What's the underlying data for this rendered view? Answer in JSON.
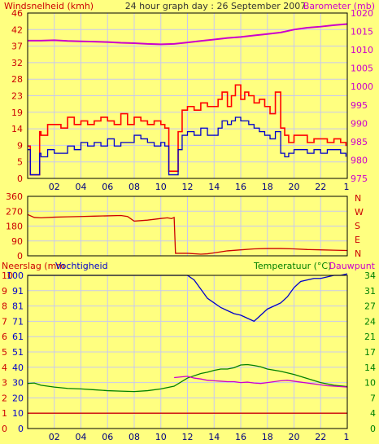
{
  "header": {
    "left": "Windsnelheid (kmh)",
    "center": "24 hour graph day : 26 September 2007",
    "right": "Barometer (mb)"
  },
  "colors": {
    "background": "#ffff80",
    "frame": "#000000",
    "grid": "#c8c8f0",
    "gust": "#ff0000",
    "wind": "#0000cc",
    "barometer": "#cc00cc",
    "direction": "#cc0000",
    "humidity": "#0000cc",
    "temperature": "#008000",
    "dewpoint": "#cc00cc",
    "rain": "#cc0000"
  },
  "chart_data": [
    {
      "type": "line",
      "x_ticks": [
        "02",
        "04",
        "06",
        "08",
        "10",
        "12",
        "14",
        "16",
        "18",
        "20",
        "22",
        "1"
      ],
      "x_range_hours": [
        0,
        24
      ],
      "left_axis": {
        "label": "Windsnelheid (kmh)",
        "ticks": [
          0,
          5,
          9,
          14,
          19,
          23,
          28,
          32,
          37,
          42,
          46
        ],
        "range": [
          0,
          46
        ]
      },
      "right_axis": {
        "label": "Barometer (mb)",
        "ticks": [
          975,
          980,
          985,
          990,
          995,
          1000,
          1005,
          1010,
          1015,
          1020
        ],
        "range": [
          975,
          1020
        ]
      },
      "series": [
        {
          "name": "gust",
          "axis": "left",
          "x": [
            0,
            0.2,
            0.5,
            0.9,
            1.0,
            1.5,
            2,
            2.5,
            3,
            3.5,
            4,
            4.5,
            5,
            5.5,
            6,
            6.5,
            7,
            7.5,
            8,
            8.5,
            9,
            9.5,
            10,
            10.3,
            10.6,
            11,
            11.3,
            11.6,
            12,
            12.5,
            13,
            13.5,
            14,
            14.3,
            14.6,
            15,
            15.3,
            15.6,
            16,
            16.3,
            16.6,
            17,
            17.4,
            17.8,
            18.2,
            18.6,
            19,
            19.3,
            19.6,
            20,
            20.5,
            21,
            21.5,
            22,
            22.5,
            23,
            23.5,
            23.9
          ],
          "values": [
            9,
            1,
            1,
            13,
            12,
            15,
            15,
            14,
            17,
            15,
            16,
            15,
            16,
            17,
            16,
            15,
            18,
            15,
            17,
            16,
            15,
            16,
            15,
            14,
            2,
            2,
            13,
            19,
            20,
            19,
            21,
            20,
            20,
            22,
            24,
            20,
            23,
            26,
            22,
            24,
            23,
            21,
            22,
            20,
            18,
            24,
            14,
            12,
            10,
            12,
            12,
            10,
            11,
            11,
            10,
            11,
            10,
            9
          ]
        },
        {
          "name": "wind",
          "axis": "left",
          "x": [
            0,
            0.2,
            0.5,
            0.9,
            1.0,
            1.5,
            2,
            2.5,
            3,
            3.5,
            4,
            4.5,
            5,
            5.5,
            6,
            6.5,
            7,
            7.5,
            8,
            8.5,
            9,
            9.5,
            10,
            10.3,
            10.6,
            11,
            11.3,
            11.6,
            12,
            12.5,
            13,
            13.5,
            14,
            14.3,
            14.6,
            15,
            15.3,
            15.6,
            16,
            16.3,
            16.6,
            17,
            17.4,
            17.8,
            18.2,
            18.6,
            19,
            19.3,
            19.6,
            20,
            20.5,
            21,
            21.5,
            22,
            22.5,
            23,
            23.5,
            23.9
          ],
          "values": [
            8,
            1,
            1,
            7,
            6,
            8,
            7,
            7,
            9,
            8,
            10,
            9,
            10,
            9,
            11,
            9,
            10,
            10,
            12,
            11,
            10,
            9,
            10,
            9,
            1,
            1,
            8,
            12,
            13,
            12,
            14,
            12,
            12,
            14,
            16,
            15,
            16,
            17,
            16,
            16,
            15,
            14,
            13,
            12,
            11,
            13,
            7,
            6,
            7,
            8,
            8,
            7,
            8,
            7,
            8,
            8,
            7,
            6
          ]
        },
        {
          "name": "barometer",
          "axis": "right",
          "x": [
            0,
            1,
            2,
            3,
            4,
            5,
            6,
            7,
            8,
            9,
            10,
            11,
            12,
            13,
            14,
            15,
            16,
            17,
            18,
            19,
            20,
            21,
            22,
            23,
            24
          ],
          "values": [
            1012.5,
            1012.5,
            1012.6,
            1012.4,
            1012.3,
            1012.2,
            1012.1,
            1011.9,
            1011.8,
            1011.6,
            1011.5,
            1011.6,
            1012.0,
            1012.4,
            1012.8,
            1013.2,
            1013.5,
            1013.9,
            1014.3,
            1014.7,
            1015.5,
            1016.0,
            1016.3,
            1016.7,
            1017.0
          ]
        }
      ]
    },
    {
      "type": "line",
      "x_range_hours": [
        0,
        24
      ],
      "left_axis": {
        "ticks": [
          0,
          90,
          180,
          270,
          360
        ],
        "range": [
          0,
          360
        ]
      },
      "right_axis": {
        "ticks": [
          "N",
          "W",
          "S",
          "E",
          "N"
        ]
      },
      "series": [
        {
          "name": "direction",
          "x": [
            0,
            0.5,
            1,
            2,
            3,
            4,
            5,
            6,
            7,
            7.5,
            8,
            9,
            10,
            10.5,
            10.8,
            11,
            11.1,
            12,
            13,
            13.5,
            14,
            15,
            16,
            17,
            18,
            19,
            20,
            21,
            22,
            23,
            24
          ],
          "values": [
            250,
            232,
            230,
            234,
            236,
            238,
            240,
            242,
            244,
            238,
            210,
            216,
            226,
            230,
            225,
            232,
            15,
            15,
            10,
            12,
            18,
            30,
            36,
            42,
            44,
            44,
            42,
            38,
            36,
            34,
            32
          ]
        }
      ]
    },
    {
      "type": "line",
      "x_ticks": [
        "02",
        "04",
        "06",
        "08",
        "10",
        "12",
        "14",
        "16",
        "18",
        "20",
        "22",
        "1"
      ],
      "x_range_hours": [
        0,
        24
      ],
      "header_left": [
        "Neerslag (mm",
        "Vochtigheid"
      ],
      "header_right": [
        "Temperatuur (°C)",
        "Dauwpunt"
      ],
      "left_axis_rain": {
        "ticks": [
          0,
          1,
          2,
          3,
          4,
          5,
          6,
          7,
          8,
          9,
          10
        ]
      },
      "left_axis_humidity": {
        "ticks": [
          0,
          10,
          20,
          30,
          40,
          51,
          61,
          71,
          81,
          91,
          100
        ],
        "range": [
          0,
          100
        ]
      },
      "right_axis_temperature": {
        "ticks": [
          0,
          4,
          7,
          10,
          14,
          17,
          21,
          24,
          27,
          31,
          34
        ],
        "range": [
          0,
          34
        ]
      },
      "series": [
        {
          "name": "humidity",
          "axis": "left",
          "x": [
            0,
            1,
            2,
            3,
            4,
            5,
            6,
            7,
            8,
            9,
            10,
            11,
            11.5,
            12,
            12.5,
            13,
            13.5,
            14,
            14.5,
            15,
            15.5,
            16,
            16.5,
            17,
            17.5,
            18,
            18.5,
            19,
            19.5,
            20,
            20.5,
            21,
            21.5,
            22,
            22.5,
            23,
            23.5,
            24
          ],
          "values": [
            100,
            100,
            100,
            100,
            100,
            100,
            100,
            100,
            100,
            100,
            100,
            100,
            100,
            100,
            97,
            91,
            85,
            82,
            79,
            77,
            75,
            74,
            72,
            70,
            74,
            78,
            80,
            82,
            86,
            92,
            96,
            97,
            98,
            98,
            99,
            100,
            100,
            101
          ]
        },
        {
          "name": "temperature",
          "axis": "right",
          "x": [
            0,
            0.5,
            1,
            2,
            3,
            4,
            5,
            6,
            7,
            8,
            9,
            10,
            11,
            12,
            13,
            13.5,
            14,
            14.5,
            15,
            15.5,
            16,
            16.5,
            17,
            17.5,
            18,
            19,
            20,
            21,
            22,
            23,
            24
          ],
          "values": [
            10,
            10.1,
            9.6,
            9.2,
            8.9,
            8.8,
            8.6,
            8.4,
            8.3,
            8.2,
            8.4,
            8.8,
            9.4,
            11.2,
            12.2,
            12.5,
            12.9,
            13.2,
            13.2,
            13.5,
            14.1,
            14.2,
            14.0,
            13.7,
            13.2,
            12.7,
            12.0,
            11.1,
            10.2,
            9.6,
            9.3
          ]
        },
        {
          "name": "dewpoint",
          "axis": "right",
          "x": [
            11,
            12,
            12.5,
            13,
            13.5,
            14,
            14.5,
            15,
            15.5,
            16,
            16.5,
            17,
            17.5,
            18,
            18.5,
            19,
            19.5,
            20,
            20.5,
            21,
            21.5,
            22,
            22.5,
            23,
            24
          ],
          "values": [
            11.3,
            11.6,
            11.2,
            11.0,
            10.7,
            10.6,
            10.5,
            10.4,
            10.4,
            10.2,
            10.3,
            10.1,
            10.0,
            10.2,
            10.4,
            10.6,
            10.7,
            10.5,
            10.3,
            10.1,
            9.9,
            9.7,
            9.5,
            9.4,
            9.2
          ]
        },
        {
          "name": "rain",
          "axis": "left_rain",
          "x": [
            0,
            24
          ],
          "values": [
            1,
            1
          ]
        }
      ]
    }
  ]
}
